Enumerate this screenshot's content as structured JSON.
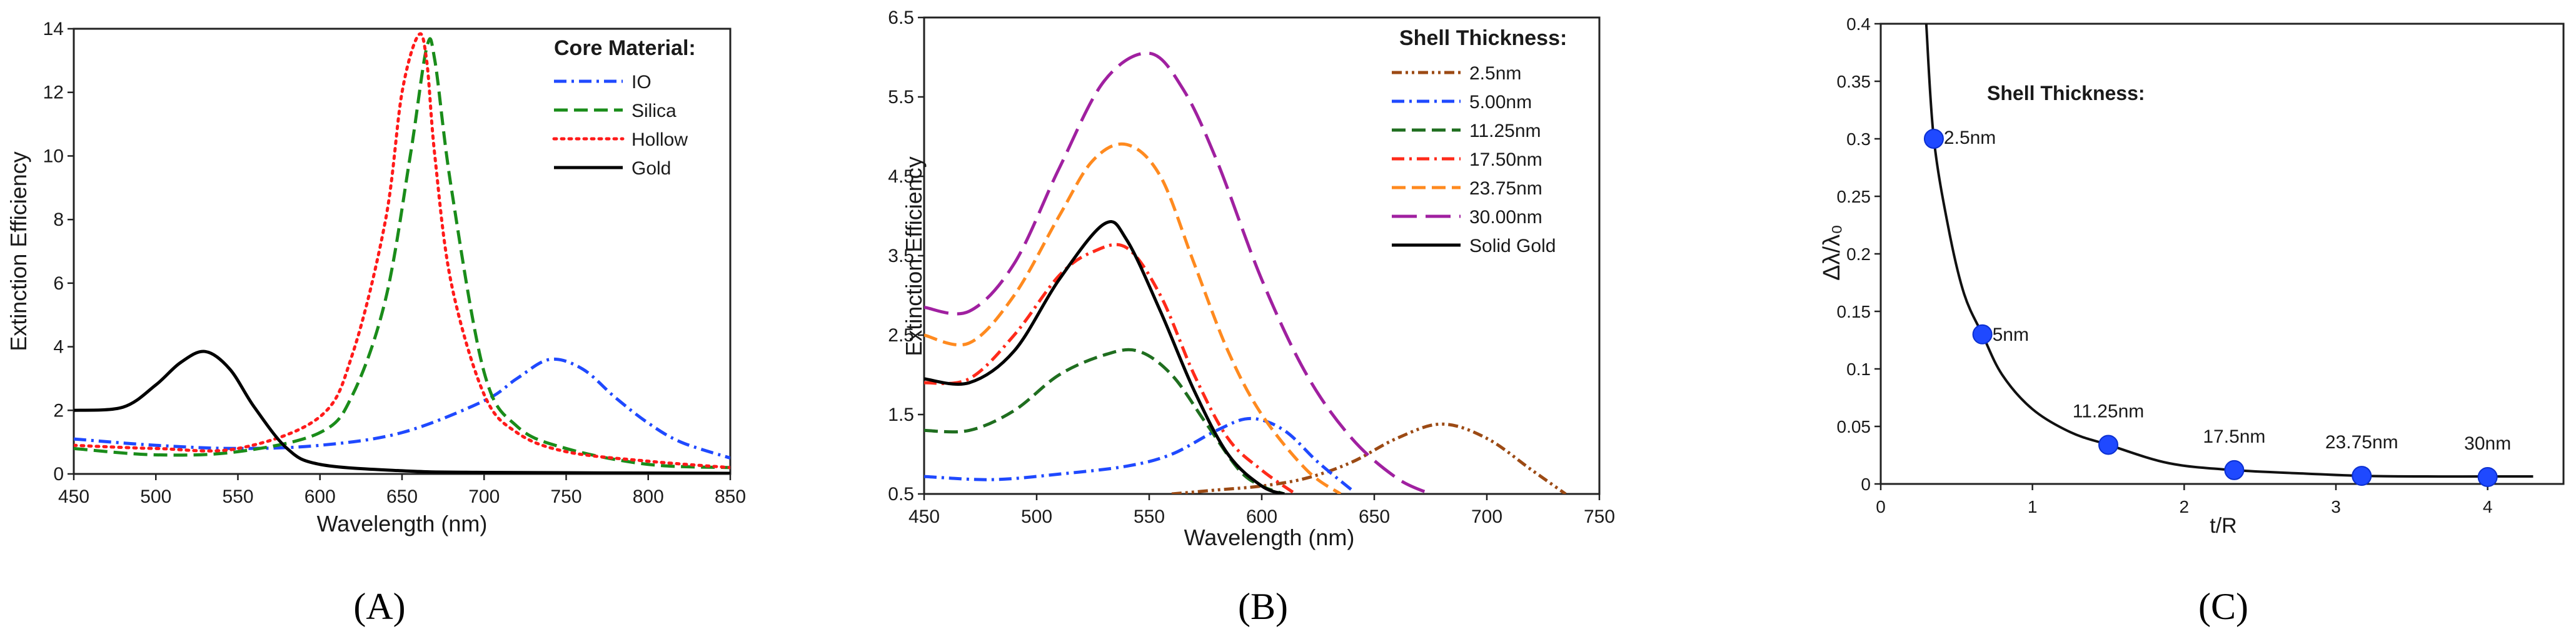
{
  "colors": {
    "blue": "#1f49ff",
    "green": "#1a8c1a",
    "red": "#ff1a1a",
    "black": "#000000",
    "brown": "#9c4a14",
    "darkgreen": "#1f6e1f",
    "redOrange": "#ff2a1a",
    "orange": "#ff8a1f",
    "purple": "#a020a0",
    "marker": "#1f49ff"
  },
  "captions": {
    "a": "(A)",
    "b": "(B)",
    "c": "(C)"
  },
  "chart_data": [
    {
      "id": "A",
      "type": "line",
      "title": "",
      "xlabel": "Wavelength (nm)",
      "ylabel": "Extinction Efficiency",
      "xlim": [
        450,
        850
      ],
      "ylim": [
        0,
        14
      ],
      "xticks": [
        450,
        500,
        550,
        600,
        650,
        700,
        750,
        800,
        850
      ],
      "yticks": [
        0,
        2,
        4,
        6,
        8,
        10,
        12,
        14
      ],
      "legend_title": "Core Material:",
      "legend_position": "top-right",
      "series": [
        {
          "name": "IO",
          "style": "dashdot",
          "color": "#1f49ff",
          "x": [
            450,
            500,
            550,
            600,
            650,
            700,
            720,
            740,
            760,
            780,
            800,
            820,
            850
          ],
          "y": [
            1.1,
            0.9,
            0.8,
            0.9,
            1.3,
            2.3,
            3.0,
            3.6,
            3.3,
            2.4,
            1.6,
            1.0,
            0.5
          ]
        },
        {
          "name": "Silica",
          "style": "dashed",
          "color": "#1a8c1a",
          "x": [
            450,
            500,
            550,
            600,
            620,
            640,
            655,
            665,
            670,
            680,
            700,
            720,
            750,
            800,
            850
          ],
          "y": [
            0.8,
            0.6,
            0.7,
            1.3,
            2.5,
            5.5,
            10.0,
            13.4,
            13.0,
            9.0,
            3.2,
            1.5,
            0.8,
            0.3,
            0.2
          ]
        },
        {
          "name": "Hollow",
          "style": "dotted",
          "color": "#ff1a1a",
          "x": [
            450,
            500,
            550,
            600,
            620,
            640,
            650,
            660,
            665,
            670,
            680,
            700,
            720,
            750,
            800,
            850
          ],
          "y": [
            0.9,
            0.8,
            0.8,
            1.8,
            3.8,
            8.0,
            12.0,
            13.8,
            13.0,
            10.0,
            6.0,
            2.5,
            1.3,
            0.7,
            0.4,
            0.2
          ]
        },
        {
          "name": "Gold",
          "style": "solid",
          "color": "#000000",
          "x": [
            450,
            480,
            500,
            515,
            530,
            545,
            560,
            580,
            600,
            650,
            700,
            850
          ],
          "y": [
            2.0,
            2.1,
            2.8,
            3.5,
            3.85,
            3.3,
            2.1,
            0.8,
            0.3,
            0.1,
            0.05,
            0.02
          ]
        }
      ]
    },
    {
      "id": "B",
      "type": "line",
      "title": "",
      "xlabel": "Wavelength (nm)",
      "ylabel": "Extinction Efficiency",
      "xlim": [
        450,
        750
      ],
      "ylim": [
        0.5,
        6.5
      ],
      "xticks": [
        450,
        500,
        550,
        600,
        650,
        700,
        750
      ],
      "yticks": [
        0.5,
        1.5,
        2.5,
        3.5,
        4.5,
        5.5,
        6.5
      ],
      "legend_title": "Shell Thickness:",
      "legend_position": "top-right",
      "series": [
        {
          "name": "2.5nm",
          "style": "dashdotdot",
          "color": "#9c4a14",
          "x": [
            560,
            580,
            600,
            620,
            640,
            660,
            680,
            700,
            720,
            735
          ],
          "y": [
            0.5,
            0.55,
            0.6,
            0.7,
            0.9,
            1.2,
            1.38,
            1.2,
            0.8,
            0.5
          ]
        },
        {
          "name": "5.00nm",
          "style": "dashdot",
          "color": "#1f49ff",
          "x": [
            450,
            480,
            510,
            540,
            560,
            580,
            595,
            610,
            625,
            640
          ],
          "y": [
            0.72,
            0.68,
            0.75,
            0.85,
            1.0,
            1.3,
            1.45,
            1.3,
            0.9,
            0.55
          ]
        },
        {
          "name": "11.25nm",
          "style": "dashed",
          "color": "#1f6e1f",
          "x": [
            450,
            470,
            490,
            510,
            530,
            545,
            560,
            575,
            590,
            600,
            610
          ],
          "y": [
            1.3,
            1.3,
            1.55,
            2.0,
            2.25,
            2.3,
            2.0,
            1.4,
            0.8,
            0.6,
            0.5
          ]
        },
        {
          "name": "17.50nm",
          "style": "dashdot",
          "color": "#ff2a1a",
          "x": [
            450,
            470,
            490,
            510,
            525,
            540,
            555,
            570,
            585,
            600,
            615
          ],
          "y": [
            1.9,
            1.95,
            2.5,
            3.25,
            3.55,
            3.6,
            3.0,
            2.0,
            1.2,
            0.8,
            0.5
          ]
        },
        {
          "name": "23.75nm",
          "style": "dashed",
          "color": "#ff8a1f",
          "x": [
            450,
            470,
            490,
            510,
            525,
            540,
            555,
            570,
            585,
            600,
            620,
            635
          ],
          "y": [
            2.5,
            2.4,
            3.0,
            4.0,
            4.7,
            4.9,
            4.5,
            3.4,
            2.3,
            1.5,
            0.8,
            0.5
          ]
        },
        {
          "name": "30.00nm",
          "style": "longdash",
          "color": "#a020a0",
          "x": [
            450,
            470,
            490,
            510,
            530,
            550,
            565,
            580,
            600,
            620,
            640,
            660,
            675
          ],
          "y": [
            2.85,
            2.8,
            3.4,
            4.6,
            5.7,
            6.05,
            5.6,
            4.7,
            3.2,
            2.0,
            1.2,
            0.7,
            0.5
          ]
        },
        {
          "name": "Solid Gold",
          "style": "solid",
          "color": "#000000",
          "x": [
            450,
            470,
            490,
            510,
            530,
            540,
            555,
            570,
            585,
            600,
            610
          ],
          "y": [
            1.95,
            1.9,
            2.3,
            3.2,
            3.9,
            3.7,
            2.8,
            1.8,
            1.0,
            0.6,
            0.5
          ]
        }
      ]
    },
    {
      "id": "C",
      "type": "scatter",
      "title": "",
      "xlabel": "t/R",
      "ylabel": "Δλ/λ₀",
      "xlim": [
        0,
        4.5
      ],
      "ylim": [
        0,
        0.4
      ],
      "xticks": [
        0,
        1,
        2,
        3,
        4
      ],
      "yticks": [
        0,
        0.05,
        0.1,
        0.15,
        0.2,
        0.25,
        0.3,
        0.35,
        0.4
      ],
      "annotation_title": "Shell Thickness:",
      "fit_curve": {
        "x": [
          0.3,
          0.35,
          0.45,
          0.55,
          0.67,
          0.8,
          1.0,
          1.25,
          1.5,
          1.9,
          2.33,
          2.8,
          3.17,
          3.6,
          4.0,
          4.3
        ],
        "y": [
          0.4,
          0.3,
          0.22,
          0.165,
          0.13,
          0.095,
          0.065,
          0.045,
          0.034,
          0.018,
          0.012,
          0.009,
          0.007,
          0.0065,
          0.0065,
          0.0065
        ]
      },
      "points": [
        {
          "x": 0.35,
          "y": 0.3,
          "label": "2.5nm"
        },
        {
          "x": 0.67,
          "y": 0.13,
          "label": "5nm"
        },
        {
          "x": 1.5,
          "y": 0.034,
          "label": "11.25nm"
        },
        {
          "x": 2.33,
          "y": 0.012,
          "label": "17.5nm"
        },
        {
          "x": 3.17,
          "y": 0.007,
          "label": "23.75nm"
        },
        {
          "x": 4.0,
          "y": 0.006,
          "label": "30nm"
        }
      ]
    }
  ]
}
